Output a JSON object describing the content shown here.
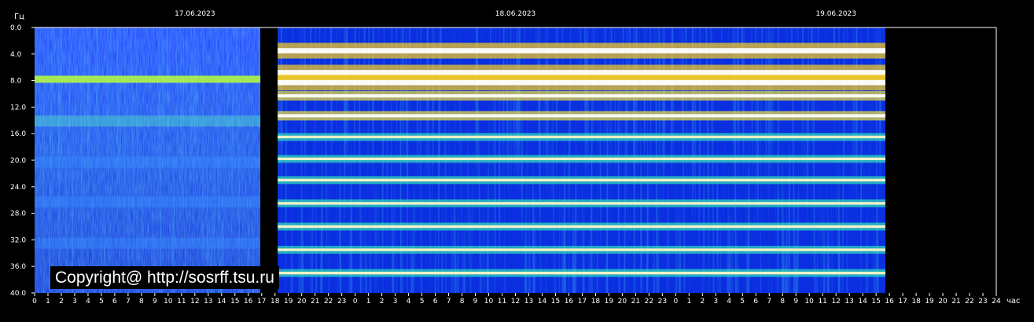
{
  "chart_data": {
    "type": "heatmap",
    "ylabel": "Гц",
    "xlabel": "час",
    "y_ticks": [
      "0.0",
      "4.0",
      "8.0",
      "12.0",
      "16.0",
      "20.0",
      "24.0",
      "28.0",
      "32.0",
      "36.0",
      "40.0"
    ],
    "ylim": [
      0,
      40
    ],
    "y_inverted": true,
    "x_hours_per_day": 24,
    "x_ticks": [
      "0",
      "1",
      "2",
      "3",
      "4",
      "5",
      "6",
      "7",
      "8",
      "9",
      "10",
      "11",
      "12",
      "13",
      "14",
      "15",
      "16",
      "17",
      "18",
      "19",
      "20",
      "21",
      "22",
      "23",
      "0",
      "1",
      "2",
      "3",
      "4",
      "5",
      "6",
      "7",
      "8",
      "9",
      "10",
      "11",
      "12",
      "13",
      "14",
      "15",
      "16",
      "17",
      "18",
      "19",
      "20",
      "21",
      "22",
      "23",
      "0",
      "1",
      "2",
      "3",
      "4",
      "5",
      "6",
      "7",
      "8",
      "9",
      "10",
      "11",
      "12",
      "13",
      "14",
      "15",
      "16",
      "17",
      "18",
      "19",
      "20",
      "21",
      "22",
      "23",
      "24"
    ],
    "dates": [
      {
        "label": "17.06.2023"
      },
      {
        "label": "18.06.2023"
      },
      {
        "label": "19.06.2023"
      }
    ],
    "segments": [
      {
        "start_hour": 0,
        "end_hour": 16.9,
        "style": "noise"
      },
      {
        "start_hour": 18.2,
        "end_hour": 63.7,
        "style": "resonance"
      }
    ],
    "resonance_bands_hz": [
      3.5,
      6.8,
      8.3,
      10.3,
      13.3,
      16.5,
      19.8,
      23.0,
      26.5,
      30.0,
      33.5,
      37.0
    ],
    "noise_bands_hz": [
      7.8,
      14.1,
      20.3,
      26.3,
      32.5
    ],
    "watermark": "Copyright@ http://sosrff.tsu.ru"
  }
}
